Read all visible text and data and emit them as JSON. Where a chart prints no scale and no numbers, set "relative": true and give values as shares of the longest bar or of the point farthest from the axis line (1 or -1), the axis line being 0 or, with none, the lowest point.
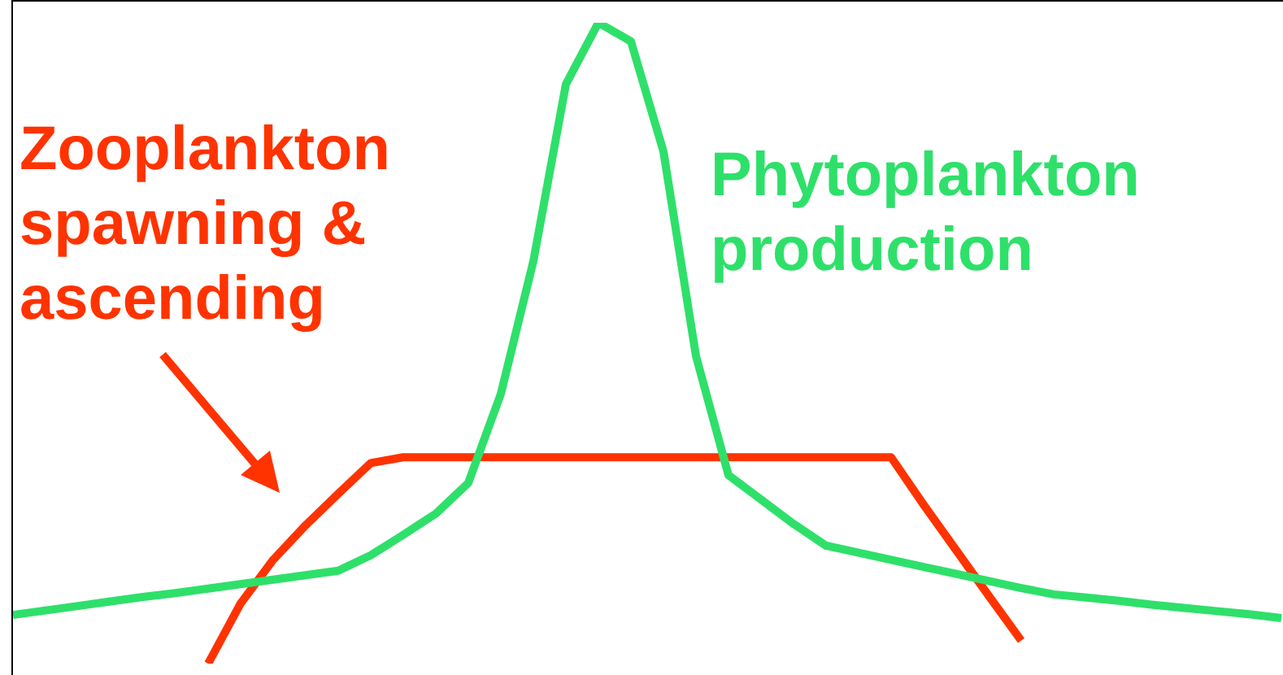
{
  "chart_data": {
    "type": "line",
    "relative": true,
    "legend": false,
    "grid": false,
    "marker": "none",
    "line_style": "solid",
    "categories": [
      null,
      null,
      null,
      null,
      null,
      null,
      null,
      null,
      null,
      null,
      null,
      null,
      null,
      null,
      null,
      null,
      null,
      null,
      null,
      null,
      null,
      null,
      null,
      null,
      null,
      null,
      null,
      null,
      null,
      null,
      null,
      null,
      null,
      null,
      null,
      null,
      null,
      null,
      null,
      null
    ],
    "series": [
      {
        "name": "Phytoplankton production",
        "color": "#2ee06a",
        "values": [
          0.076,
          0.083,
          0.09,
          0.097,
          0.104,
          0.11,
          0.117,
          0.124,
          0.131,
          0.138,
          0.145,
          0.169,
          0.201,
          0.234,
          0.282,
          0.421,
          0.628,
          0.904,
          1,
          0.971,
          0.799,
          0.48,
          0.294,
          0.256,
          0.218,
          0.184,
          0.173,
          0.162,
          0.151,
          0.14,
          0.129,
          0.118,
          0.108,
          0.103,
          0.098,
          0.092,
          0.087,
          0.082,
          0.077,
          0.071
        ]
      },
      {
        "name": "Zooplankton spawning & ascending",
        "color": "#ff3300",
        "values": [
          null,
          null,
          null,
          null,
          null,
          null,
          0,
          0.094,
          0.162,
          0.216,
          0.265,
          0.313,
          0.322,
          0.322,
          0.322,
          0.322,
          0.322,
          0.322,
          0.322,
          0.322,
          0.322,
          0.322,
          0.322,
          0.322,
          0.322,
          0.322,
          0.322,
          0.322,
          0.248,
          0.177,
          0.106,
          0.036,
          null,
          null,
          null,
          null,
          null,
          null,
          null,
          null
        ]
      }
    ]
  }
}
